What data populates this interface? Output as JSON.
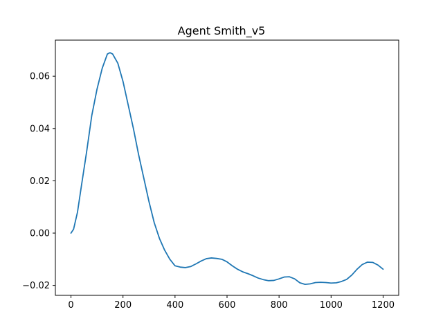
{
  "chart_data": {
    "type": "line",
    "title": "Agent Smith_v5",
    "xlabel": "",
    "ylabel": "",
    "xlim": [
      -60,
      1260
    ],
    "ylim": [
      -0.0238,
      0.0738
    ],
    "grid": false,
    "legend": "none",
    "x_ticks": [
      0,
      200,
      400,
      600,
      800,
      1000,
      1200
    ],
    "y_ticks": [
      -0.02,
      0.0,
      0.02,
      0.04,
      0.06
    ],
    "y_tick_labels": [
      "−0.02",
      "0.00",
      "0.02",
      "0.04",
      "0.06"
    ],
    "x_tick_labels": [
      "0",
      "200",
      "400",
      "600",
      "800",
      "1000",
      "1200"
    ],
    "series": [
      {
        "color": "#1f77b4",
        "points": [
          [
            0,
            0.0
          ],
          [
            10,
            0.0015
          ],
          [
            25,
            0.008
          ],
          [
            40,
            0.018
          ],
          [
            60,
            0.031
          ],
          [
            80,
            0.045
          ],
          [
            100,
            0.055
          ],
          [
            120,
            0.063
          ],
          [
            140,
            0.0685
          ],
          [
            150,
            0.069
          ],
          [
            160,
            0.0685
          ],
          [
            180,
            0.065
          ],
          [
            200,
            0.058
          ],
          [
            220,
            0.049
          ],
          [
            240,
            0.04
          ],
          [
            260,
            0.03
          ],
          [
            280,
            0.021
          ],
          [
            300,
            0.012
          ],
          [
            320,
            0.004
          ],
          [
            340,
            -0.002
          ],
          [
            360,
            -0.0065
          ],
          [
            380,
            -0.01
          ],
          [
            400,
            -0.0125
          ],
          [
            420,
            -0.013
          ],
          [
            440,
            -0.0132
          ],
          [
            460,
            -0.0128
          ],
          [
            480,
            -0.0118
          ],
          [
            500,
            -0.0107
          ],
          [
            520,
            -0.0098
          ],
          [
            540,
            -0.0095
          ],
          [
            560,
            -0.0097
          ],
          [
            580,
            -0.01
          ],
          [
            600,
            -0.011
          ],
          [
            620,
            -0.0125
          ],
          [
            640,
            -0.0138
          ],
          [
            660,
            -0.0148
          ],
          [
            680,
            -0.0155
          ],
          [
            700,
            -0.0163
          ],
          [
            720,
            -0.0172
          ],
          [
            740,
            -0.0178
          ],
          [
            760,
            -0.0182
          ],
          [
            780,
            -0.0181
          ],
          [
            800,
            -0.0175
          ],
          [
            820,
            -0.0168
          ],
          [
            840,
            -0.0167
          ],
          [
            860,
            -0.0175
          ],
          [
            880,
            -0.019
          ],
          [
            900,
            -0.0196
          ],
          [
            920,
            -0.0194
          ],
          [
            940,
            -0.0189
          ],
          [
            960,
            -0.0188
          ],
          [
            980,
            -0.0189
          ],
          [
            1000,
            -0.0191
          ],
          [
            1020,
            -0.019
          ],
          [
            1040,
            -0.0185
          ],
          [
            1060,
            -0.0177
          ],
          [
            1080,
            -0.016
          ],
          [
            1100,
            -0.0138
          ],
          [
            1120,
            -0.012
          ],
          [
            1140,
            -0.0111
          ],
          [
            1160,
            -0.0112
          ],
          [
            1180,
            -0.0122
          ],
          [
            1200,
            -0.0138
          ]
        ]
      }
    ]
  }
}
